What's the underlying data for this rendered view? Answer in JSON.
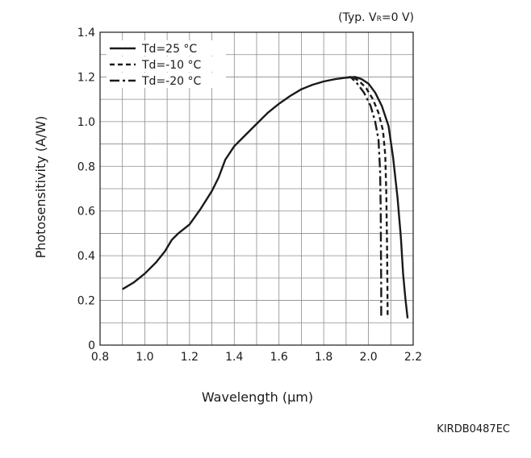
{
  "chart_data": {
    "type": "line",
    "title": "",
    "condition_note": "(Typ. VR=0 V)",
    "condition_prefix": "(Typ. V",
    "condition_sub": "R",
    "condition_suffix": "=0 V)",
    "xlabel": "Wavelength (µm)",
    "ylabel": "Photosensitivity (A/W)",
    "xlim": [
      0.8,
      2.2
    ],
    "ylim": [
      0,
      1.4
    ],
    "x_ticks": [
      "0.8",
      "1.0",
      "1.2",
      "1.4",
      "1.6",
      "1.8",
      "2.0",
      "2.2"
    ],
    "y_ticks": [
      "0",
      "0.2",
      "0.4",
      "0.6",
      "0.8",
      "1.0",
      "1.2",
      "1.4"
    ],
    "grid": true,
    "minor_grid_step_x": 0.1,
    "minor_grid_step_y": 0.1,
    "legend_position": "top-left",
    "series": [
      {
        "name": "Td=25 °C",
        "style": "solid",
        "points": [
          [
            0.9,
            0.25
          ],
          [
            0.95,
            0.28
          ],
          [
            1.0,
            0.32
          ],
          [
            1.05,
            0.37
          ],
          [
            1.09,
            0.42
          ],
          [
            1.12,
            0.47
          ],
          [
            1.15,
            0.5
          ],
          [
            1.2,
            0.54
          ],
          [
            1.25,
            0.61
          ],
          [
            1.3,
            0.69
          ],
          [
            1.33,
            0.75
          ],
          [
            1.36,
            0.83
          ],
          [
            1.4,
            0.89
          ],
          [
            1.45,
            0.94
          ],
          [
            1.5,
            0.99
          ],
          [
            1.55,
            1.04
          ],
          [
            1.6,
            1.08
          ],
          [
            1.65,
            1.115
          ],
          [
            1.7,
            1.145
          ],
          [
            1.75,
            1.165
          ],
          [
            1.8,
            1.18
          ],
          [
            1.85,
            1.19
          ],
          [
            1.9,
            1.197
          ],
          [
            1.94,
            1.2
          ],
          [
            1.97,
            1.19
          ],
          [
            2.0,
            1.17
          ],
          [
            2.03,
            1.13
          ],
          [
            2.06,
            1.07
          ],
          [
            2.09,
            0.98
          ],
          [
            2.11,
            0.84
          ],
          [
            2.13,
            0.66
          ],
          [
            2.145,
            0.48
          ],
          [
            2.155,
            0.32
          ],
          [
            2.165,
            0.21
          ],
          [
            2.175,
            0.12
          ]
        ]
      },
      {
        "name": "Td=-10 °C",
        "style": "dashed",
        "points": [
          [
            1.9,
            1.197
          ],
          [
            1.93,
            1.2
          ],
          [
            1.96,
            1.18
          ],
          [
            1.99,
            1.15
          ],
          [
            2.02,
            1.1
          ],
          [
            2.045,
            1.04
          ],
          [
            2.065,
            0.96
          ],
          [
            2.075,
            0.85
          ],
          [
            2.08,
            0.68
          ],
          [
            2.083,
            0.45
          ],
          [
            2.085,
            0.25
          ],
          [
            2.086,
            0.12
          ]
        ]
      },
      {
        "name": "Td=-20 °C",
        "style": "dash-dot",
        "points": [
          [
            1.9,
            1.197
          ],
          [
            1.92,
            1.2
          ],
          [
            1.95,
            1.17
          ],
          [
            1.98,
            1.13
          ],
          [
            2.01,
            1.07
          ],
          [
            2.03,
            1.0
          ],
          [
            2.045,
            0.92
          ],
          [
            2.052,
            0.78
          ],
          [
            2.055,
            0.6
          ],
          [
            2.056,
            0.4
          ],
          [
            2.057,
            0.25
          ],
          [
            2.057,
            0.13
          ]
        ]
      }
    ]
  },
  "figure_code": "KIRDB0487EC"
}
